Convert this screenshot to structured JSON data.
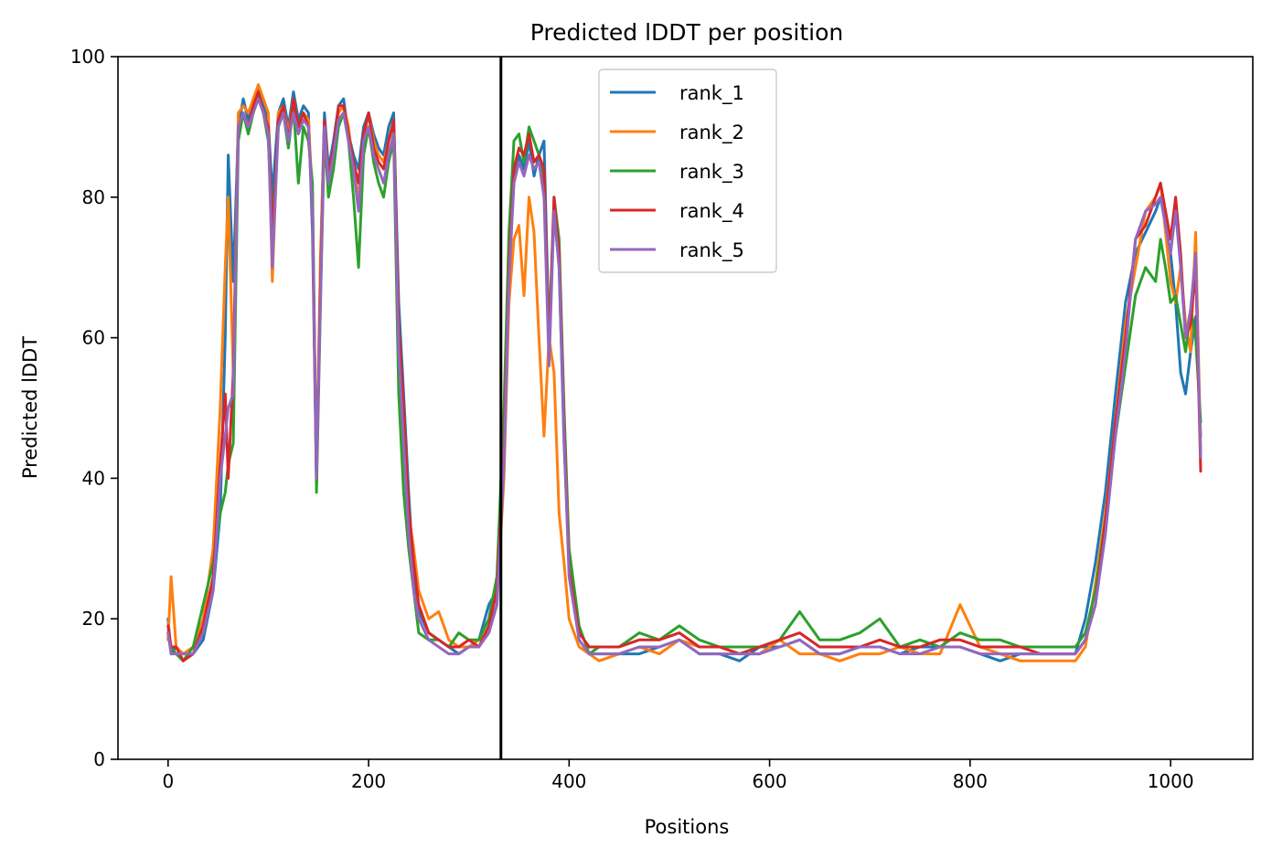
{
  "chart_data": {
    "type": "line",
    "title": "Predicted lDDT per position",
    "xlabel": "Positions",
    "ylabel": "Predicted lDDT",
    "xlim": [
      -50,
      1082
    ],
    "ylim": [
      0,
      100
    ],
    "xticks": [
      0,
      200,
      400,
      600,
      800,
      1000
    ],
    "yticks": [
      0,
      20,
      40,
      60,
      80,
      100
    ],
    "grid": false,
    "legend_position": "upper-center",
    "chain_break": {
      "x": 332,
      "color": "#000000"
    },
    "series": [
      {
        "name": "rank_1",
        "color": "#1f77b4",
        "x": [
          0,
          3,
          8,
          15,
          25,
          35,
          45,
          52,
          57,
          60,
          65,
          70,
          75,
          80,
          85,
          90,
          95,
          100,
          104,
          110,
          115,
          120,
          125,
          130,
          135,
          140,
          144,
          148,
          152,
          156,
          160,
          165,
          170,
          175,
          180,
          185,
          190,
          195,
          200,
          205,
          210,
          215,
          220,
          225,
          230,
          235,
          240,
          245,
          250,
          260,
          270,
          280,
          290,
          300,
          310,
          320,
          328,
          335,
          340,
          345,
          350,
          355,
          360,
          365,
          370,
          375,
          380,
          385,
          390,
          395,
          400,
          410,
          420,
          430,
          450,
          470,
          490,
          510,
          530,
          550,
          570,
          590,
          610,
          630,
          650,
          670,
          690,
          710,
          730,
          750,
          770,
          790,
          810,
          830,
          850,
          870,
          890,
          905,
          915,
          925,
          935,
          945,
          955,
          965,
          975,
          985,
          990,
          995,
          1000,
          1005,
          1010,
          1015,
          1020,
          1025,
          1030
        ],
        "y": [
          20,
          15,
          16,
          15,
          15,
          17,
          24,
          35,
          60,
          86,
          68,
          90,
          94,
          91,
          93,
          96,
          93,
          91,
          80,
          92,
          94,
          90,
          95,
          91,
          93,
          92,
          75,
          39,
          70,
          92,
          84,
          88,
          93,
          94,
          89,
          86,
          84,
          90,
          92,
          89,
          87,
          86,
          90,
          92,
          65,
          52,
          38,
          26,
          21,
          18,
          17,
          16,
          15,
          16,
          17,
          22,
          24,
          45,
          70,
          82,
          86,
          84,
          88,
          83,
          86,
          88,
          60,
          78,
          70,
          45,
          28,
          17,
          15,
          15,
          15,
          15,
          16,
          17,
          15,
          15,
          14,
          16,
          16,
          17,
          15,
          15,
          16,
          16,
          15,
          16,
          16,
          16,
          15,
          14,
          15,
          15,
          15,
          15,
          20,
          28,
          38,
          52,
          65,
          72,
          75,
          78,
          80,
          76,
          72,
          65,
          55,
          52,
          58,
          63,
          46
        ]
      },
      {
        "name": "rank_2",
        "color": "#ff7f0e",
        "x": [
          0,
          3,
          8,
          15,
          25,
          35,
          45,
          52,
          57,
          60,
          65,
          70,
          75,
          80,
          85,
          90,
          95,
          100,
          104,
          110,
          115,
          120,
          125,
          130,
          135,
          140,
          144,
          148,
          152,
          156,
          160,
          165,
          170,
          175,
          180,
          185,
          190,
          195,
          200,
          205,
          210,
          215,
          220,
          225,
          230,
          235,
          240,
          245,
          250,
          260,
          270,
          280,
          290,
          300,
          310,
          320,
          328,
          335,
          340,
          345,
          350,
          355,
          360,
          365,
          370,
          375,
          380,
          385,
          390,
          395,
          400,
          410,
          420,
          430,
          450,
          470,
          490,
          510,
          530,
          550,
          570,
          590,
          610,
          630,
          650,
          670,
          690,
          710,
          730,
          750,
          770,
          790,
          810,
          830,
          850,
          870,
          890,
          905,
          915,
          925,
          935,
          945,
          955,
          965,
          975,
          985,
          990,
          995,
          1000,
          1005,
          1010,
          1015,
          1020,
          1025,
          1030
        ],
        "y": [
          17,
          26,
          16,
          15,
          16,
          20,
          30,
          50,
          70,
          80,
          55,
          92,
          93,
          92,
          94,
          96,
          94,
          92,
          68,
          92,
          93,
          89,
          94,
          90,
          92,
          91,
          80,
          40,
          72,
          90,
          82,
          86,
          92,
          93,
          90,
          84,
          80,
          88,
          92,
          88,
          86,
          85,
          88,
          90,
          60,
          45,
          35,
          30,
          24,
          20,
          21,
          17,
          16,
          16,
          17,
          18,
          22,
          40,
          65,
          74,
          76,
          66,
          80,
          75,
          60,
          46,
          60,
          55,
          35,
          28,
          20,
          16,
          15,
          14,
          15,
          16,
          15,
          17,
          16,
          16,
          15,
          15,
          17,
          15,
          15,
          14,
          15,
          15,
          16,
          15,
          15,
          22,
          16,
          15,
          14,
          14,
          14,
          14,
          16,
          25,
          35,
          48,
          62,
          70,
          78,
          80,
          82,
          75,
          68,
          65,
          70,
          62,
          58,
          75,
          44
        ]
      },
      {
        "name": "rank_3",
        "color": "#2ca02c",
        "x": [
          0,
          3,
          8,
          15,
          25,
          35,
          45,
          52,
          57,
          60,
          65,
          70,
          75,
          80,
          85,
          90,
          95,
          100,
          104,
          110,
          115,
          120,
          125,
          130,
          135,
          140,
          144,
          148,
          152,
          156,
          160,
          165,
          170,
          175,
          180,
          185,
          190,
          195,
          200,
          205,
          210,
          215,
          220,
          225,
          230,
          235,
          240,
          245,
          250,
          260,
          270,
          280,
          290,
          300,
          310,
          320,
          328,
          335,
          340,
          345,
          350,
          355,
          360,
          365,
          370,
          375,
          380,
          385,
          390,
          395,
          400,
          410,
          420,
          430,
          450,
          470,
          490,
          510,
          530,
          550,
          570,
          590,
          610,
          630,
          650,
          670,
          690,
          710,
          730,
          750,
          770,
          790,
          810,
          830,
          850,
          870,
          890,
          905,
          915,
          925,
          935,
          945,
          955,
          965,
          975,
          985,
          990,
          995,
          1000,
          1005,
          1010,
          1015,
          1020,
          1025,
          1030
        ],
        "y": [
          18,
          16,
          15,
          14,
          16,
          22,
          28,
          35,
          38,
          42,
          45,
          88,
          92,
          89,
          92,
          95,
          92,
          88,
          76,
          90,
          92,
          87,
          93,
          82,
          90,
          88,
          82,
          38,
          65,
          89,
          80,
          84,
          90,
          92,
          88,
          80,
          70,
          86,
          90,
          85,
          82,
          80,
          85,
          88,
          52,
          38,
          30,
          24,
          18,
          17,
          17,
          16,
          18,
          17,
          17,
          20,
          26,
          50,
          75,
          88,
          89,
          85,
          90,
          88,
          86,
          82,
          60,
          80,
          74,
          50,
          30,
          19,
          15,
          16,
          16,
          18,
          17,
          19,
          17,
          16,
          16,
          16,
          17,
          21,
          17,
          17,
          18,
          20,
          16,
          17,
          16,
          18,
          17,
          17,
          16,
          16,
          16,
          16,
          18,
          24,
          34,
          46,
          56,
          66,
          70,
          68,
          74,
          70,
          65,
          66,
          62,
          58,
          64,
          60,
          48
        ]
      },
      {
        "name": "rank_4",
        "color": "#d62728",
        "x": [
          0,
          3,
          8,
          15,
          25,
          35,
          45,
          52,
          57,
          60,
          65,
          70,
          75,
          80,
          85,
          90,
          95,
          100,
          104,
          110,
          115,
          120,
          125,
          130,
          135,
          140,
          144,
          148,
          152,
          156,
          160,
          165,
          170,
          175,
          180,
          185,
          190,
          195,
          200,
          205,
          210,
          215,
          220,
          225,
          230,
          235,
          240,
          245,
          250,
          260,
          270,
          280,
          290,
          300,
          310,
          320,
          328,
          335,
          340,
          345,
          350,
          355,
          360,
          365,
          370,
          375,
          380,
          385,
          390,
          395,
          400,
          410,
          420,
          430,
          450,
          470,
          490,
          510,
          530,
          550,
          570,
          590,
          610,
          630,
          650,
          670,
          690,
          710,
          730,
          750,
          770,
          790,
          810,
          830,
          850,
          870,
          890,
          905,
          915,
          925,
          935,
          945,
          955,
          965,
          975,
          985,
          990,
          995,
          1000,
          1005,
          1010,
          1015,
          1020,
          1025,
          1030
        ],
        "y": [
          19,
          16,
          16,
          14,
          15,
          19,
          26,
          42,
          52,
          40,
          55,
          90,
          92,
          90,
          93,
          95,
          92,
          90,
          74,
          91,
          93,
          88,
          94,
          90,
          92,
          90,
          78,
          40,
          68,
          91,
          83,
          87,
          93,
          93,
          89,
          85,
          82,
          89,
          92,
          87,
          85,
          84,
          88,
          91,
          62,
          50,
          36,
          28,
          22,
          18,
          17,
          16,
          16,
          17,
          16,
          19,
          24,
          44,
          70,
          84,
          87,
          86,
          89,
          85,
          86,
          84,
          58,
          80,
          72,
          48,
          27,
          18,
          16,
          16,
          16,
          17,
          17,
          18,
          16,
          16,
          15,
          16,
          17,
          18,
          16,
          16,
          16,
          17,
          16,
          16,
          17,
          17,
          16,
          16,
          16,
          15,
          15,
          15,
          17,
          22,
          34,
          48,
          60,
          74,
          76,
          80,
          82,
          78,
          74,
          80,
          72,
          60,
          62,
          70,
          41
        ]
      },
      {
        "name": "rank_5",
        "color": "#9467bd",
        "x": [
          0,
          3,
          8,
          15,
          25,
          35,
          45,
          52,
          57,
          60,
          65,
          70,
          75,
          80,
          85,
          90,
          95,
          100,
          104,
          110,
          115,
          120,
          125,
          130,
          135,
          140,
          144,
          148,
          152,
          156,
          160,
          165,
          170,
          175,
          180,
          185,
          190,
          195,
          200,
          205,
          210,
          215,
          220,
          225,
          230,
          235,
          240,
          245,
          250,
          260,
          270,
          280,
          290,
          300,
          310,
          320,
          328,
          335,
          340,
          345,
          350,
          355,
          360,
          365,
          370,
          375,
          380,
          385,
          390,
          395,
          400,
          410,
          420,
          430,
          450,
          470,
          490,
          510,
          530,
          550,
          570,
          590,
          610,
          630,
          650,
          670,
          690,
          710,
          730,
          750,
          770,
          790,
          810,
          830,
          850,
          870,
          890,
          905,
          915,
          925,
          935,
          945,
          955,
          965,
          975,
          985,
          990,
          995,
          1000,
          1005,
          1010,
          1015,
          1020,
          1025,
          1030
        ],
        "y": [
          18,
          15,
          15,
          15,
          15,
          18,
          24,
          40,
          46,
          50,
          52,
          90,
          92,
          90,
          92,
          94,
          92,
          89,
          70,
          90,
          92,
          88,
          92,
          89,
          91,
          90,
          78,
          40,
          66,
          90,
          82,
          86,
          91,
          92,
          88,
          84,
          78,
          88,
          90,
          86,
          84,
          82,
          86,
          89,
          58,
          45,
          32,
          24,
          20,
          17,
          16,
          15,
          15,
          16,
          16,
          18,
          22,
          42,
          68,
          82,
          85,
          83,
          86,
          84,
          85,
          80,
          56,
          78,
          70,
          46,
          26,
          17,
          15,
          15,
          15,
          16,
          16,
          17,
          15,
          15,
          15,
          15,
          16,
          17,
          15,
          15,
          16,
          16,
          15,
          15,
          16,
          16,
          15,
          15,
          15,
          15,
          15,
          15,
          17,
          22,
          32,
          46,
          58,
          74,
          78,
          79,
          80,
          76,
          72,
          78,
          70,
          60,
          64,
          72,
          43
        ]
      }
    ]
  }
}
